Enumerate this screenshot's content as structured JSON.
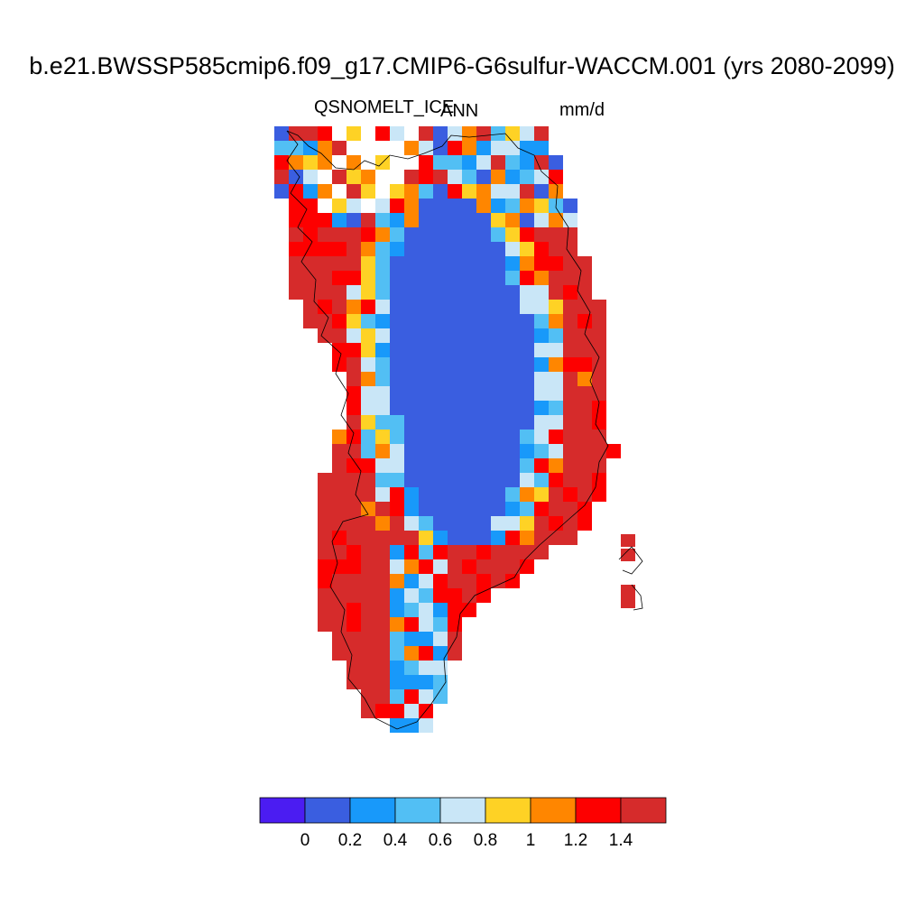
{
  "title": "b.e21.BWSSP585cmip6.f09_g17.CMIP6-G6sulfur-WACCM.001 (yrs 2080-2099)",
  "subtitle_left": "QSNOMELT_ICE",
  "subtitle_center": "ANN",
  "subtitle_right": "mm/d",
  "colorbar": {
    "colors": [
      "#4b1cf2",
      "#3a5ee0",
      "#1899fa",
      "#52bff4",
      "#c9e6f7",
      "#fed225",
      "#ff8600",
      "#fd0000",
      "#d62b2b"
    ],
    "tick_labels": [
      "0",
      "0.2",
      "0.4",
      "0.6",
      "0.8",
      "1",
      "1.2",
      "1.4"
    ]
  },
  "region": "Greenland",
  "colormap_levels": [
    0,
    0.2,
    0.4,
    0.6,
    0.8,
    1.0,
    1.2,
    1.4
  ]
}
